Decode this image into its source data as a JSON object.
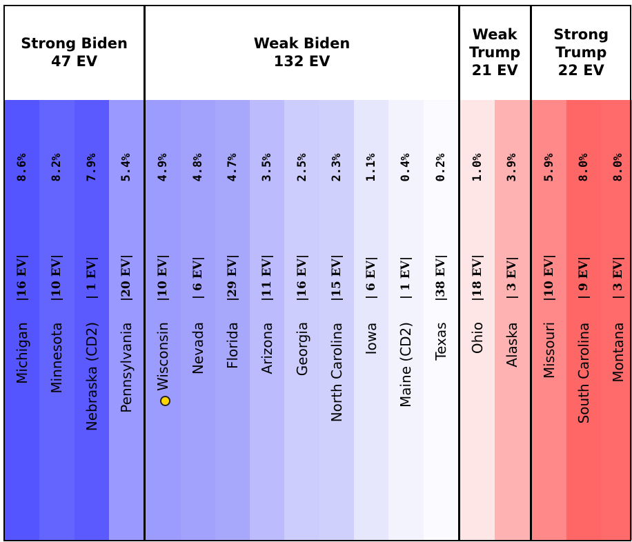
{
  "chart_data": {
    "type": "table",
    "groups": [
      {
        "label": "Strong Biden\n47 EV",
        "count": 4
      },
      {
        "label": "Weak Biden\n132 EV",
        "count": 9
      },
      {
        "label": "Weak\nTrump\n21 EV",
        "count": 2
      },
      {
        "label": "Strong\nTrump\n22 EV",
        "count": 3
      }
    ],
    "columns": [
      {
        "state": "Michigan",
        "ev_label": "|16 EV|",
        "ev": 16,
        "margin_label": "8.6%",
        "margin": 8.6,
        "party": "Biden",
        "color": "#5555ff"
      },
      {
        "state": "Minnesota",
        "ev_label": "|10 EV|",
        "ev": 10,
        "margin_label": "8.2%",
        "margin": 8.2,
        "party": "Biden",
        "color": "#6464ff"
      },
      {
        "state": "Nebraska (CD2)",
        "ev_label": "| 1 EV|",
        "ev": 1,
        "margin_label": "7.9%",
        "margin": 7.9,
        "party": "Biden",
        "color": "#5a5aff"
      },
      {
        "state": "Pennsylvania",
        "ev_label": "|20 EV|",
        "ev": 20,
        "margin_label": "5.4%",
        "margin": 5.4,
        "party": "Biden",
        "color": "#9999ff"
      },
      {
        "state": "Wisconsin",
        "ev_label": "|10 EV|",
        "ev": 10,
        "margin_label": "4.9%",
        "margin": 4.9,
        "party": "Biden",
        "color": "#9c9cff",
        "marker": true
      },
      {
        "state": "Nevada",
        "ev_label": "| 6 EV|",
        "ev": 6,
        "margin_label": "4.8%",
        "margin": 4.8,
        "party": "Biden",
        "color": "#a2a2fc"
      },
      {
        "state": "Florida",
        "ev_label": "|29 EV|",
        "ev": 29,
        "margin_label": "4.7%",
        "margin": 4.7,
        "party": "Biden",
        "color": "#a7a7fc"
      },
      {
        "state": "Arizona",
        "ev_label": "|11 EV|",
        "ev": 11,
        "margin_label": "3.5%",
        "margin": 3.5,
        "party": "Biden",
        "color": "#bbbbfd"
      },
      {
        "state": "Georgia",
        "ev_label": "|16 EV|",
        "ev": 16,
        "margin_label": "2.5%",
        "margin": 2.5,
        "party": "Biden",
        "color": "#cdcdfd"
      },
      {
        "state": "North Carolina",
        "ev_label": "|15 EV|",
        "ev": 15,
        "margin_label": "2.3%",
        "margin": 2.3,
        "party": "Biden",
        "color": "#d0d0fd"
      },
      {
        "state": "Iowa",
        "ev_label": "| 6 EV|",
        "ev": 6,
        "margin_label": "1.1%",
        "margin": 1.1,
        "party": "Biden",
        "color": "#e6e6fd"
      },
      {
        "state": "Maine (CD2)",
        "ev_label": "| 1 EV|",
        "ev": 1,
        "margin_label": "0.4%",
        "margin": 0.4,
        "party": "Biden",
        "color": "#f3f3fd"
      },
      {
        "state": "Texas",
        "ev_label": "|38 EV|",
        "ev": 38,
        "margin_label": "0.2%",
        "margin": 0.2,
        "party": "Biden",
        "color": "#fbfbff"
      },
      {
        "state": "Ohio",
        "ev_label": "|18 EV|",
        "ev": 18,
        "margin_label": "1.0%",
        "margin": 1.0,
        "party": "Trump",
        "color": "#ffe6e6"
      },
      {
        "state": "Alaska",
        "ev_label": "| 3 EV|",
        "ev": 3,
        "margin_label": "3.9%",
        "margin": 3.9,
        "party": "Trump",
        "color": "#feb2b2"
      },
      {
        "state": "Missouri",
        "ev_label": "|10 EV|",
        "ev": 10,
        "margin_label": "5.9%",
        "margin": 5.9,
        "party": "Trump",
        "color": "#ff8888"
      },
      {
        "state": "South Carolina",
        "ev_label": "| 9 EV|",
        "ev": 9,
        "margin_label": "8.0%",
        "margin": 8.0,
        "party": "Trump",
        "color": "#ff6666"
      },
      {
        "state": "Montana",
        "ev_label": "| 3 EV|",
        "ev": 3,
        "margin_label": "8.0%",
        "margin": 8.0,
        "party": "Trump",
        "color": "#ff6a6a"
      }
    ],
    "marker_color": "#ffd500"
  }
}
